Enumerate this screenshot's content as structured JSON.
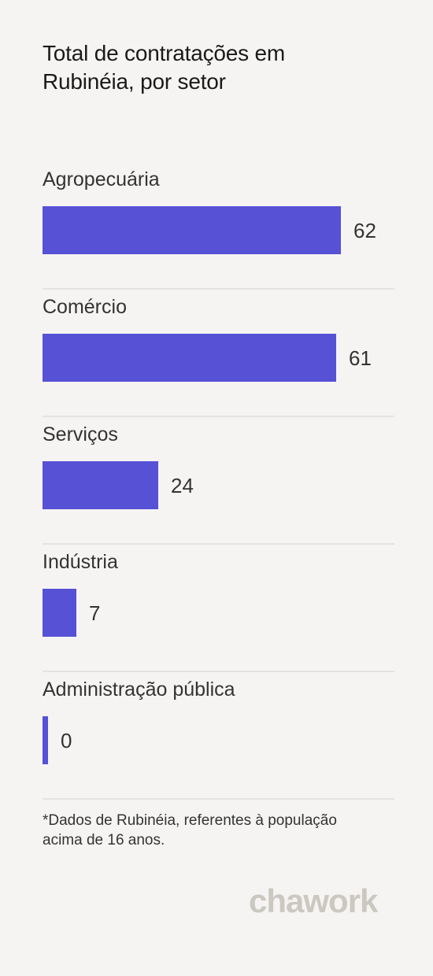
{
  "brand": {
    "logo_text": "chawork",
    "logo_color": "#cbc8c0"
  },
  "colors": {
    "bar": "#5751d6",
    "background": "#f5f4f2",
    "text": "#333333"
  },
  "footnote": "*Dados de Rubinéia, referentes à população acima de 16 anos.",
  "chart_data": {
    "type": "bar",
    "orientation": "horizontal",
    "title": "Total de contratações em Rubinéia, por setor",
    "categories": [
      "Agropecuária",
      "Comércio",
      "Serviços",
      "Indústria",
      "Administração pública"
    ],
    "values": [
      62,
      61,
      24,
      7,
      0
    ],
    "value_labels": [
      "62",
      "61",
      "24",
      "7",
      "0"
    ],
    "xlim": [
      0,
      62
    ],
    "grid": false,
    "legend": "none"
  }
}
